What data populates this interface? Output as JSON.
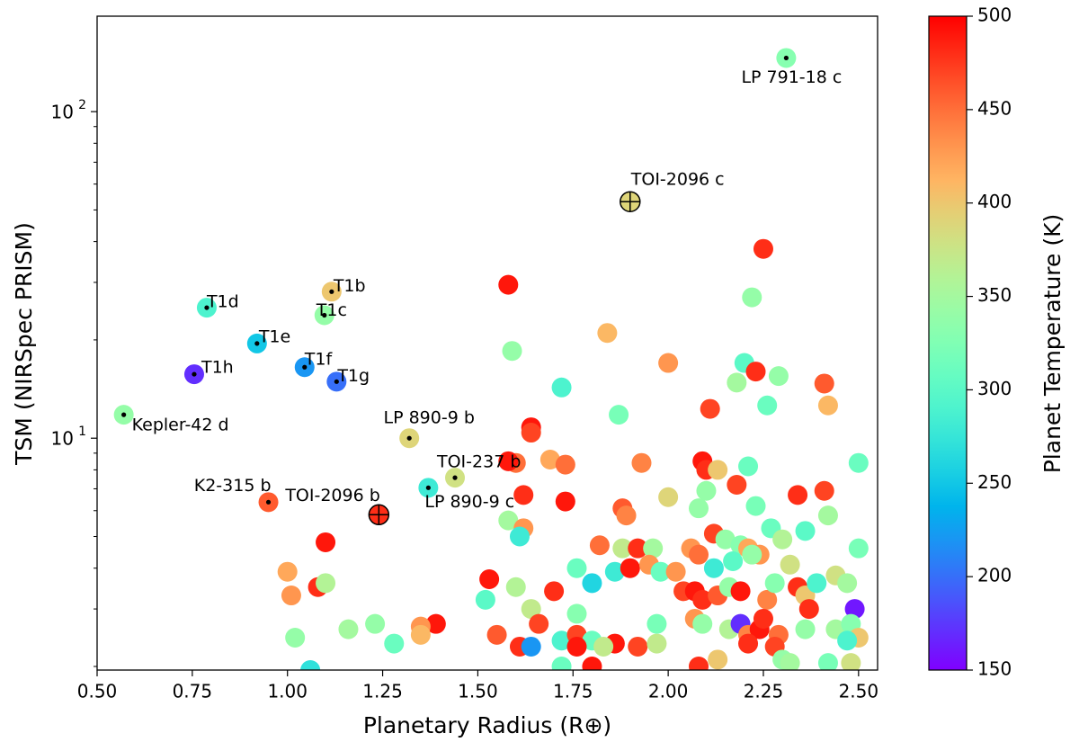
{
  "chart_data": {
    "type": "scatter",
    "xlabel": "Planetary Radius (R⊕)",
    "ylabel": "TSM (NIRSpec PRISM)",
    "xlim": [
      0.5,
      2.55
    ],
    "ylim": [
      1.95,
      196
    ],
    "yscale": "log",
    "xticks": [
      {
        "value": 0.5,
        "label": "0.50"
      },
      {
        "value": 0.75,
        "label": "0.75"
      },
      {
        "value": 1,
        "label": "1.00"
      },
      {
        "value": 1.25,
        "label": "1.25"
      },
      {
        "value": 1.5,
        "label": "1.50"
      },
      {
        "value": 1.75,
        "label": "1.75"
      },
      {
        "value": 2,
        "label": "2.00"
      },
      {
        "value": 2.25,
        "label": "2.25"
      },
      {
        "value": 2.5,
        "label": "2.50"
      }
    ],
    "yticks": [
      {
        "value": 10,
        "label": "10",
        "exponent": "1"
      },
      {
        "value": 100,
        "label": "10",
        "exponent": "2"
      }
    ],
    "yticks_minor": [
      2,
      3,
      4,
      5,
      6,
      7,
      8,
      9,
      20,
      30,
      40,
      50,
      60,
      70,
      80,
      90
    ],
    "colormap": "rainbow",
    "colorbar": {
      "label": "Planet Temperature (K)",
      "clim": [
        150,
        500
      ],
      "ticks": [
        150,
        200,
        250,
        300,
        350,
        400,
        450,
        500
      ]
    },
    "series": [
      {
        "x": [
          1.58,
          2.25,
          2.22,
          1.84,
          1.59,
          2.0,
          2.2,
          2.23,
          2.29,
          2.18,
          2.41,
          1.72,
          2.11,
          2.26,
          2.42,
          1.87,
          1.64,
          1.64,
          1.6,
          1.58,
          1.69,
          1.73,
          1.93,
          2.09,
          2.1,
          2.13,
          2.21,
          2.5,
          1.62,
          1.73,
          1.88,
          1.89,
          2.0,
          2.1,
          2.18,
          2.08,
          2.23,
          2.34,
          2.41,
          2.27,
          2.3,
          2.36,
          2.42,
          1.58,
          1.62,
          1.61,
          2.12,
          2.15,
          2.19,
          2.21,
          2.24,
          1.1,
          1.82,
          1.88,
          1.92,
          1.96,
          2.06,
          2.08,
          2.12,
          2.17,
          2.22,
          2.32,
          2.5,
          1.0,
          1.53,
          1.01,
          1.08,
          1.1,
          1.6,
          1.7,
          1.8,
          1.76,
          1.86,
          1.9,
          1.95,
          1.98,
          2.02,
          2.04,
          2.07,
          2.09,
          2.13,
          2.16,
          2.19,
          2.26,
          2.28,
          2.34,
          2.36,
          2.37,
          2.39,
          2.44,
          2.47,
          2.49,
          1.52,
          1.64,
          1.76,
          1.66,
          1.39,
          1.35,
          1.23,
          1.16,
          1.02,
          1.35,
          1.28,
          1.55,
          1.61,
          1.64,
          1.72,
          1.76,
          1.8,
          1.76,
          1.86,
          1.92,
          1.97,
          1.97,
          2.07,
          2.09,
          2.16,
          2.19,
          2.21,
          2.24,
          2.25,
          2.29,
          2.36,
          2.44,
          2.48,
          2.5,
          2.21,
          2.28,
          2.3,
          2.13,
          2.08,
          1.8,
          1.72,
          1.83,
          2.47,
          2.42,
          2.48,
          1.06,
          2.32
        ],
        "values": [
          29.5,
          38,
          27,
          21,
          18.5,
          17,
          17,
          16,
          15.5,
          14.8,
          14.7,
          14.3,
          12.3,
          12.6,
          12.6,
          11.8,
          10.8,
          10.4,
          8.4,
          8.5,
          8.6,
          8.3,
          8.4,
          8.5,
          8.0,
          8.0,
          8.2,
          8.4,
          6.7,
          6.4,
          6.1,
          5.8,
          6.6,
          6.9,
          7.2,
          6.1,
          6.2,
          6.7,
          6.9,
          5.3,
          4.9,
          5.2,
          5.8,
          5.6,
          5.3,
          5.0,
          5.1,
          4.9,
          4.7,
          4.6,
          4.4,
          4.8,
          4.7,
          4.6,
          4.6,
          4.6,
          4.6,
          4.4,
          4.0,
          4.2,
          4.4,
          4.1,
          4.6,
          3.9,
          3.7,
          3.3,
          3.5,
          3.6,
          3.5,
          3.4,
          3.6,
          4.0,
          3.9,
          4.0,
          4.1,
          3.9,
          3.9,
          3.4,
          3.4,
          3.2,
          3.3,
          3.5,
          3.4,
          3.2,
          3.6,
          3.5,
          3.3,
          3.0,
          3.6,
          3.8,
          3.6,
          3.0,
          3.2,
          3.0,
          2.9,
          2.7,
          2.7,
          2.65,
          2.7,
          2.6,
          2.45,
          2.5,
          2.35,
          2.5,
          2.3,
          2.3,
          2.4,
          2.5,
          2.4,
          2.3,
          2.35,
          2.3,
          2.7,
          2.35,
          2.8,
          2.7,
          2.6,
          2.7,
          2.5,
          2.6,
          2.8,
          2.5,
          2.6,
          2.6,
          2.7,
          2.45,
          2.35,
          2.3,
          2.1,
          2.1,
          2.0,
          2.0,
          2.0,
          2.3,
          2.4,
          2.05,
          2.05,
          1.95,
          2.05
        ],
        "temperature": [
          490,
          480,
          340,
          410,
          340,
          430,
          300,
          480,
          340,
          350,
          460,
          290,
          470,
          310,
          410,
          320,
          490,
          470,
          450,
          490,
          420,
          450,
          440,
          490,
          480,
          400,
          310,
          310,
          480,
          490,
          460,
          440,
          390,
          340,
          470,
          340,
          320,
          480,
          470,
          310,
          360,
          300,
          350,
          350,
          430,
          280,
          470,
          340,
          330,
          420,
          430,
          490,
          450,
          370,
          480,
          350,
          430,
          450,
          280,
          300,
          340,
          380,
          320,
          420,
          490,
          430,
          480,
          360,
          360,
          480,
          260,
          310,
          280,
          490,
          430,
          310,
          430,
          470,
          490,
          480,
          460,
          340,
          490,
          440,
          330,
          480,
          400,
          480,
          290,
          380,
          350,
          160,
          300,
          370,
          330,
          470,
          490,
          430,
          340,
          350,
          340,
          410,
          310,
          460,
          480,
          220,
          290,
          470,
          310,
          490,
          490,
          470,
          320,
          370,
          430,
          340,
          360,
          170,
          440,
          490,
          480,
          450,
          340,
          350,
          330,
          400,
          480,
          470,
          340,
          400,
          480,
          490,
          310,
          370,
          290,
          320,
          380,
          270,
          350
        ]
      },
      {
        "labels": [
          "LP 791-18 c",
          "TOI-2096 c",
          "T1b",
          "T1c",
          "T1d",
          "T1e",
          "T1f",
          "T1g",
          "T1h",
          "Kepler-42 d",
          "LP 890-9 b",
          "TOI-237 b",
          "LP 890-9 c",
          "K2-315 b",
          "TOI-2096 b"
        ],
        "x": [
          2.31,
          1.9,
          1.116,
          1.097,
          0.788,
          0.92,
          1.045,
          1.129,
          0.755,
          0.57,
          1.32,
          1.44,
          1.37,
          0.95,
          1.24
        ],
        "values": [
          146,
          53,
          28.1,
          23.8,
          25.1,
          19.5,
          16.5,
          14.9,
          15.7,
          11.8,
          10.0,
          7.57,
          7.05,
          6.37,
          5.83
        ],
        "temperature": [
          330,
          390,
          400,
          340,
          290,
          250,
          220,
          200,
          170,
          340,
          390,
          380,
          280,
          460,
          480
        ],
        "markers": [
          "dot",
          "earth",
          "dot",
          "dot",
          "dot",
          "dot",
          "dot",
          "dot",
          "dot",
          "dot",
          "dot",
          "dot",
          "dot",
          "dot",
          "earth"
        ]
      }
    ]
  }
}
